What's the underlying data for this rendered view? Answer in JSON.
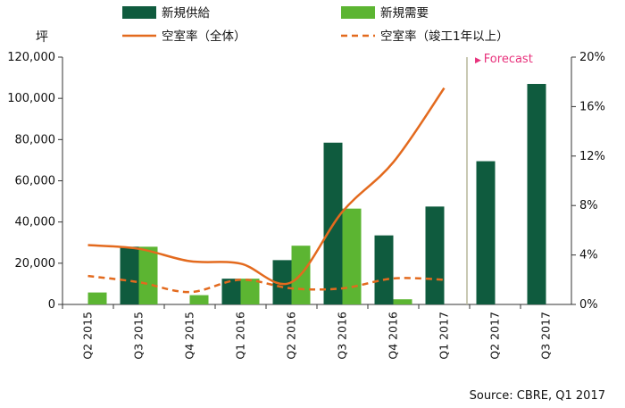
{
  "chart_data": {
    "type": "bar",
    "y_left_unit": "坪",
    "categories": [
      "Q2 2015",
      "Q3 2015",
      "Q4 2015",
      "Q1 2016",
      "Q2 2016",
      "Q3 2016",
      "Q4 2016",
      "Q1 2017",
      "Q2 2017",
      "Q3 2017"
    ],
    "ylim_left": [
      0,
      120000
    ],
    "yticks_left": [
      "0",
      "20,000",
      "40,000",
      "60,000",
      "80,000",
      "100,000",
      "120,000"
    ],
    "ylim_right": [
      0,
      20
    ],
    "yticks_right": [
      "0%",
      "4%",
      "8%",
      "12%",
      "16%",
      "20%"
    ],
    "series": [
      {
        "name": "新規供給",
        "kind": "bar",
        "color": "#0f5b3e",
        "values": [
          0,
          28000,
          0,
          12500,
          21500,
          78500,
          33500,
          47500,
          69500,
          107000
        ]
      },
      {
        "name": "新規需要",
        "kind": "bar",
        "color": "#5cb532",
        "values": [
          5800,
          28000,
          4500,
          12500,
          28500,
          46500,
          2500,
          0,
          0,
          0
        ]
      },
      {
        "name": "空室率（全体）",
        "kind": "line",
        "color": "#e36a1e",
        "axis": "right",
        "values": [
          4.8,
          4.5,
          3.5,
          3.3,
          1.8,
          7.5,
          11.5,
          17.5,
          null,
          null
        ]
      },
      {
        "name": "空室率（竣工1年以上）",
        "kind": "dashed-line",
        "color": "#e36a1e",
        "axis": "right",
        "values": [
          2.3,
          1.8,
          1.0,
          2.0,
          1.3,
          1.3,
          2.1,
          2.0,
          null,
          null
        ]
      }
    ],
    "annotation": "Forecast",
    "annotation_color": "#e8327c",
    "source": "Source: CBRE, Q1 2017"
  }
}
